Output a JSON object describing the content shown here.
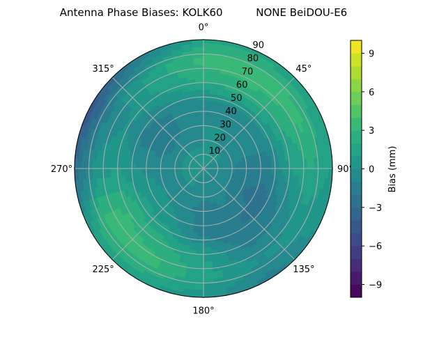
{
  "chart_data": {
    "type": "heatmap",
    "subtype": "polar-filled-contour",
    "title": "Antenna Phase Biases: KOLK60          NONE BeiDOU-E6",
    "angular_ticks": [
      "0°",
      "45°",
      "90°",
      "135°",
      "180°",
      "225°",
      "270°",
      "315°"
    ],
    "radial_ticks": [
      "10",
      "20",
      "30",
      "40",
      "50",
      "60",
      "70",
      "80",
      "90"
    ],
    "radial_range": [
      0,
      90
    ],
    "theta_direction": "clockwise",
    "theta_zero": "north",
    "grid": true,
    "colormap": "viridis",
    "colorbar": {
      "label": "Bias (mm)",
      "range": [
        -10,
        10
      ],
      "levels_step": 1,
      "ticks": [
        "−9",
        "−6",
        "−3",
        "0",
        "3",
        "6",
        "9"
      ],
      "tick_values": [
        -9,
        -6,
        -3,
        0,
        3,
        6,
        9
      ],
      "placement": "right"
    },
    "azimuth": [
      0,
      30,
      60,
      90,
      120,
      150,
      180,
      210,
      240,
      270,
      300,
      330
    ],
    "radius": [
      0,
      15,
      30,
      45,
      60,
      75,
      90
    ],
    "values": [
      [
        0,
        0,
        0,
        -0.5,
        2,
        3.5,
        1.5
      ],
      [
        0,
        0,
        0,
        -0.5,
        2.5,
        3.8,
        1.5
      ],
      [
        0,
        0,
        -0.5,
        -0.5,
        2,
        3.5,
        1
      ],
      [
        0,
        -0.5,
        -1.5,
        -1.5,
        1,
        2,
        1
      ],
      [
        0,
        -0.5,
        -2,
        -2.5,
        -1,
        0.5,
        0
      ],
      [
        0,
        -0.5,
        -1,
        -2,
        -1.5,
        0,
        -1.5
      ],
      [
        0,
        -0.5,
        -1.5,
        -1.5,
        1,
        1.5,
        0.5
      ],
      [
        0,
        0,
        -0.5,
        0.5,
        2.5,
        3.5,
        1
      ],
      [
        0,
        0,
        0,
        1,
        3,
        3.5,
        1
      ],
      [
        0,
        0,
        -0.5,
        0,
        1,
        0.5,
        -3
      ],
      [
        0,
        0,
        -1.5,
        -1.5,
        0,
        -1,
        -5
      ],
      [
        0,
        0,
        -1,
        -1,
        1,
        1.5,
        -2
      ]
    ]
  }
}
